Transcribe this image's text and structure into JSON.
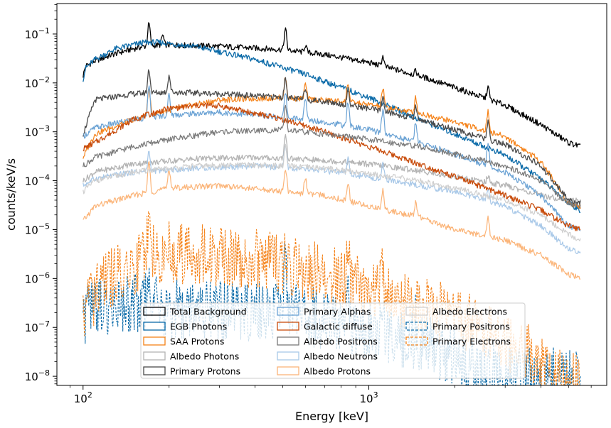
{
  "chart_data": {
    "type": "line",
    "xlabel": "Energy [keV]",
    "ylabel": "counts/keV/s",
    "x_scale": "log",
    "y_scale": "log",
    "xlim": [
      81,
      6800
    ],
    "ylim": [
      6.5e-09,
      0.42
    ],
    "x_ticks": [
      {
        "value": 100,
        "base": "10",
        "exp": "2"
      },
      {
        "value": 1000,
        "base": "10",
        "exp": "3"
      }
    ],
    "y_ticks": [
      {
        "value": 1e-08,
        "base": "10",
        "exp": "−8"
      },
      {
        "value": 1e-07,
        "base": "10",
        "exp": "−7"
      },
      {
        "value": 1e-06,
        "base": "10",
        "exp": "−6"
      },
      {
        "value": 1e-05,
        "base": "10",
        "exp": "−5"
      },
      {
        "value": 0.0001,
        "base": "10",
        "exp": "−4"
      },
      {
        "value": 0.001,
        "base": "10",
        "exp": "−3"
      },
      {
        "value": 0.01,
        "base": "10",
        "exp": "−2"
      },
      {
        "value": 0.1,
        "base": "10",
        "exp": "−1"
      }
    ],
    "grid": false,
    "legend_position": "lower-center",
    "lines": [
      {
        "x": 511,
        "label": ""
      },
      {
        "x": 2614,
        "label": ""
      }
    ],
    "series": [
      {
        "name": "Total Background",
        "color": "#000000",
        "dash": false,
        "width": 1.3,
        "points": [
          [
            100,
            0.014
          ],
          [
            102,
            0.022
          ],
          [
            110,
            0.028
          ],
          [
            130,
            0.04
          ],
          [
            150,
            0.05
          ],
          [
            170,
            0.058
          ],
          [
            200,
            0.06
          ],
          [
            300,
            0.056
          ],
          [
            500,
            0.048
          ],
          [
            700,
            0.038
          ],
          [
            1000,
            0.026
          ],
          [
            1500,
            0.014
          ],
          [
            2000,
            0.008
          ],
          [
            3000,
            0.0035
          ],
          [
            4000,
            0.0014
          ],
          [
            5000,
            0.0006
          ],
          [
            5500,
            0.0005
          ]
        ],
        "peaks": [
          [
            170,
            2.8
          ],
          [
            190,
            1.6
          ],
          [
            511,
            2.6
          ],
          [
            600,
            1.4
          ],
          [
            1120,
            1.6
          ],
          [
            1460,
            1.2
          ],
          [
            2614,
            1.8
          ]
        ]
      },
      {
        "name": "EGB Photons",
        "color": "#0a6aa8",
        "dash": false,
        "width": 1.3,
        "points": [
          [
            100,
            0.012
          ],
          [
            102,
            0.02
          ],
          [
            110,
            0.03
          ],
          [
            130,
            0.05
          ],
          [
            160,
            0.066
          ],
          [
            180,
            0.068
          ],
          [
            250,
            0.055
          ],
          [
            400,
            0.03
          ],
          [
            600,
            0.015
          ],
          [
            1000,
            0.005
          ],
          [
            1500,
            0.0018
          ],
          [
            2000,
            0.0009
          ],
          [
            3000,
            0.00033
          ],
          [
            4000,
            0.00011
          ],
          [
            5000,
            3.5e-05
          ],
          [
            5500,
            2.5e-05
          ]
        ],
        "peaks": []
      },
      {
        "name": "SAA Protons",
        "color": "#f58218",
        "dash": false,
        "width": 1.2,
        "points": [
          [
            100,
            0.0003
          ],
          [
            110,
            0.0009
          ],
          [
            150,
            0.0018
          ],
          [
            200,
            0.0028
          ],
          [
            300,
            0.0045
          ],
          [
            500,
            0.005
          ],
          [
            800,
            0.0042
          ],
          [
            1000,
            0.0036
          ],
          [
            1500,
            0.0024
          ],
          [
            2000,
            0.0016
          ],
          [
            3000,
            0.0008
          ],
          [
            4000,
            0.00025
          ],
          [
            5000,
            3.5e-05
          ],
          [
            5500,
            3e-05
          ]
        ],
        "peaks": [
          [
            170,
            3.5
          ],
          [
            511,
            2.5
          ],
          [
            600,
            2.0
          ],
          [
            846,
            2.5
          ],
          [
            1120,
            2.4
          ],
          [
            1460,
            2.0
          ],
          [
            2614,
            2.5
          ]
        ]
      },
      {
        "name": "Albedo Photons",
        "color": "#b4b4b4",
        "dash": false,
        "width": 1.3,
        "points": [
          [
            100,
            0.0001
          ],
          [
            110,
            0.00015
          ],
          [
            150,
            0.00022
          ],
          [
            250,
            0.00028
          ],
          [
            400,
            0.0003
          ],
          [
            700,
            0.00026
          ],
          [
            1000,
            0.00022
          ],
          [
            1500,
            0.00016
          ],
          [
            2000,
            0.00012
          ],
          [
            3000,
            8e-05
          ],
          [
            4000,
            5e-05
          ],
          [
            5000,
            4e-05
          ],
          [
            5500,
            4e-05
          ]
        ],
        "peaks": [
          [
            511,
            3.0
          ],
          [
            2614,
            1.4
          ]
        ]
      },
      {
        "name": "Primary Protons",
        "color": "#4a4a4a",
        "dash": false,
        "width": 1.3,
        "points": [
          [
            100,
            0.0009
          ],
          [
            110,
            0.0045
          ],
          [
            150,
            0.006
          ],
          [
            200,
            0.0065
          ],
          [
            300,
            0.006
          ],
          [
            500,
            0.005
          ],
          [
            700,
            0.0042
          ],
          [
            1000,
            0.003
          ],
          [
            1500,
            0.0018
          ],
          [
            2000,
            0.0011
          ],
          [
            3000,
            0.00055
          ],
          [
            4000,
            0.0002
          ],
          [
            5000,
            4e-05
          ],
          [
            5500,
            3.5e-05
          ]
        ],
        "peaks": [
          [
            170,
            3.0
          ],
          [
            200,
            2.2
          ],
          [
            511,
            2.5
          ],
          [
            600,
            1.8
          ],
          [
            846,
            2.0
          ],
          [
            1120,
            2.0
          ],
          [
            1460,
            1.8
          ],
          [
            2614,
            2.2
          ]
        ]
      },
      {
        "name": "Primary Alphas",
        "color": "#6aa2d4",
        "dash": false,
        "width": 1.2,
        "points": [
          [
            100,
            0.0008
          ],
          [
            110,
            0.0012
          ],
          [
            150,
            0.0018
          ],
          [
            200,
            0.0022
          ],
          [
            300,
            0.0025
          ],
          [
            500,
            0.002
          ],
          [
            700,
            0.0016
          ],
          [
            1000,
            0.0011
          ],
          [
            1500,
            0.0006
          ],
          [
            2000,
            0.00035
          ],
          [
            3000,
            0.00015
          ],
          [
            4000,
            5e-05
          ],
          [
            5000,
            1.2e-05
          ],
          [
            5500,
            1e-05
          ]
        ],
        "peaks": [
          [
            170,
            4.0
          ],
          [
            200,
            2.5
          ],
          [
            511,
            3.0
          ],
          [
            600,
            2.5
          ],
          [
            846,
            3.0
          ],
          [
            1120,
            3.0
          ],
          [
            1460,
            2.5
          ],
          [
            2614,
            3.0
          ]
        ]
      },
      {
        "name": "Galactic diffuse",
        "color": "#c84c0c",
        "dash": false,
        "width": 1.3,
        "points": [
          [
            100,
            0.00045
          ],
          [
            110,
            0.0006
          ],
          [
            150,
            0.0018
          ],
          [
            200,
            0.003
          ],
          [
            260,
            0.0035
          ],
          [
            300,
            0.0034
          ],
          [
            500,
            0.0018
          ],
          [
            700,
            0.001
          ],
          [
            1000,
            0.0005
          ],
          [
            1500,
            0.00022
          ],
          [
            2000,
            0.00012
          ],
          [
            3000,
            5e-05
          ],
          [
            4000,
            2.5e-05
          ],
          [
            5000,
            1.2e-05
          ],
          [
            5500,
            1e-05
          ]
        ],
        "peaks": []
      },
      {
        "name": "Albedo Positrons",
        "color": "#7a7a7a",
        "dash": false,
        "width": 1.2,
        "points": [
          [
            100,
            0.0002
          ],
          [
            110,
            0.0003
          ],
          [
            150,
            0.0005
          ],
          [
            200,
            0.0007
          ],
          [
            300,
            0.001
          ],
          [
            500,
            0.0011
          ],
          [
            700,
            0.0009
          ],
          [
            1000,
            0.0007
          ],
          [
            1500,
            0.0005
          ],
          [
            2000,
            0.00035
          ],
          [
            3000,
            0.0002
          ],
          [
            4000,
            0.0001
          ],
          [
            5000,
            3.5e-05
          ],
          [
            5500,
            3e-05
          ]
        ],
        "peaks": [
          [
            511,
            3.0
          ]
        ]
      },
      {
        "name": "Albedo Neutrons",
        "color": "#a8c8e8",
        "dash": false,
        "width": 1.2,
        "points": [
          [
            100,
            8e-05
          ],
          [
            110,
            0.00011
          ],
          [
            150,
            0.00015
          ],
          [
            250,
            0.00018
          ],
          [
            400,
            0.0002
          ],
          [
            700,
            0.00016
          ],
          [
            1000,
            0.00012
          ],
          [
            1500,
            8e-05
          ],
          [
            2000,
            6e-05
          ],
          [
            3000,
            3e-05
          ],
          [
            4000,
            1.2e-05
          ],
          [
            5000,
            4e-06
          ],
          [
            5500,
            3.5e-06
          ]
        ],
        "peaks": [
          [
            170,
            2.5
          ],
          [
            511,
            3.0
          ],
          [
            846,
            2.0
          ],
          [
            1120,
            2.0
          ],
          [
            2614,
            1.8
          ]
        ]
      },
      {
        "name": "Albedo Protons",
        "color": "#fbb478",
        "dash": false,
        "width": 1.2,
        "points": [
          [
            100,
            1.5e-05
          ],
          [
            110,
            3e-05
          ],
          [
            150,
            5e-05
          ],
          [
            200,
            7e-05
          ],
          [
            300,
            8e-05
          ],
          [
            500,
            6e-05
          ],
          [
            700,
            5e-05
          ],
          [
            1000,
            3e-05
          ],
          [
            1500,
            1.8e-05
          ],
          [
            2000,
            1e-05
          ],
          [
            3000,
            6e-06
          ],
          [
            4000,
            3e-06
          ],
          [
            5000,
            1.2e-06
          ],
          [
            5500,
            1e-06
          ]
        ],
        "peaks": [
          [
            170,
            4.0
          ],
          [
            200,
            2.5
          ],
          [
            511,
            3.0
          ],
          [
            600,
            2.2
          ],
          [
            846,
            2.5
          ],
          [
            1120,
            2.5
          ],
          [
            1460,
            2.0
          ],
          [
            2614,
            2.5
          ]
        ]
      },
      {
        "name": "Albedo Electrons",
        "color": "#cfcfcf",
        "dash": false,
        "width": 1.2,
        "points": [
          [
            100,
            6e-05
          ],
          [
            110,
            0.0001
          ],
          [
            150,
            0.00015
          ],
          [
            250,
            0.0002
          ],
          [
            400,
            0.00021
          ],
          [
            700,
            0.00018
          ],
          [
            1000,
            0.00014
          ],
          [
            1500,
            0.0001
          ],
          [
            2000,
            7e-05
          ],
          [
            3000,
            4e-05
          ],
          [
            4000,
            2e-05
          ],
          [
            5000,
            8e-06
          ],
          [
            5500,
            6e-06
          ]
        ],
        "peaks": [
          [
            511,
            2.5
          ]
        ]
      },
      {
        "name": "Primary Positrons",
        "color": "#0a6aa8",
        "dash": true,
        "width": 1.1,
        "points": [
          [
            100,
            8e-07
          ],
          [
            120,
            1.2e-06
          ],
          [
            150,
            1.5e-06
          ],
          [
            200,
            1e-06
          ],
          [
            300,
            9e-07
          ],
          [
            500,
            1e-06
          ],
          [
            700,
            6e-07
          ],
          [
            1000,
            4e-07
          ],
          [
            1500,
            2e-07
          ],
          [
            2000,
            1e-07
          ],
          [
            3000,
            4e-08
          ]
        ],
        "peaks": [
          [
            170,
            6.0
          ],
          [
            511,
            8.0
          ],
          [
            846,
            3.0
          ],
          [
            1120,
            3.0
          ],
          [
            1460,
            2.5
          ]
        ]
      },
      {
        "name": "Primary Electrons",
        "color": "#f58218",
        "dash": true,
        "width": 1.1,
        "points": [
          [
            100,
            1e-06
          ],
          [
            110,
            2e-06
          ],
          [
            130,
            5e-06
          ],
          [
            170,
            1.2e-05
          ],
          [
            200,
            1.5e-05
          ],
          [
            300,
            1.2e-05
          ],
          [
            400,
            1.1e-05
          ],
          [
            500,
            8e-06
          ],
          [
            700,
            5.5e-06
          ],
          [
            1000,
            2.8e-06
          ],
          [
            1500,
            1.2e-06
          ],
          [
            2000,
            7e-07
          ],
          [
            3000,
            2.5e-07
          ],
          [
            4000,
            8e-08
          ],
          [
            5000,
            3e-08
          ]
        ],
        "peaks": [
          [
            170,
            6.0
          ],
          [
            511,
            3.0
          ],
          [
            600,
            2.0
          ],
          [
            846,
            2.5
          ],
          [
            1120,
            2.5
          ],
          [
            1460,
            2.0
          ]
        ]
      }
    ]
  }
}
